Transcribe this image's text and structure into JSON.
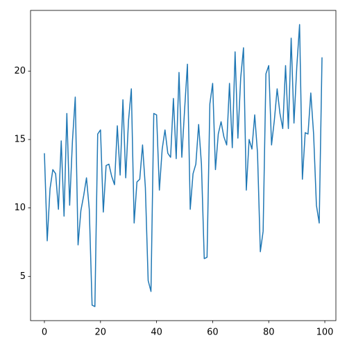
{
  "chart_data": {
    "type": "line",
    "x": [
      0,
      1,
      2,
      3,
      4,
      5,
      6,
      7,
      8,
      9,
      10,
      11,
      12,
      13,
      14,
      15,
      16,
      17,
      18,
      19,
      20,
      21,
      22,
      23,
      24,
      25,
      26,
      27,
      28,
      29,
      30,
      31,
      32,
      33,
      34,
      35,
      36,
      37,
      38,
      39,
      40,
      41,
      42,
      43,
      44,
      45,
      46,
      47,
      48,
      49,
      50,
      51,
      52,
      53,
      54,
      55,
      56,
      57,
      58,
      59,
      60,
      61,
      62,
      63,
      64,
      65,
      66,
      67,
      68,
      69,
      70,
      71,
      72,
      73,
      74,
      75,
      76,
      77,
      78,
      79,
      80,
      81,
      82,
      83,
      84,
      85,
      86,
      87,
      88,
      89,
      90,
      91,
      92,
      93,
      94,
      95,
      96,
      97,
      98,
      99
    ],
    "series": [
      {
        "color": "#1f77b4",
        "values": [
          14.0,
          7.6,
          11.4,
          12.8,
          12.5,
          9.9,
          14.9,
          9.4,
          16.9,
          10.2,
          14.9,
          18.1,
          7.3,
          9.8,
          10.9,
          12.2,
          9.9,
          2.9,
          2.8,
          15.4,
          15.7,
          9.7,
          13.1,
          13.2,
          12.3,
          11.7,
          16.0,
          12.4,
          17.9,
          12.2,
          16.4,
          18.7,
          8.9,
          11.9,
          12.1,
          14.6,
          11.5,
          4.7,
          3.9,
          16.9,
          16.8,
          11.3,
          14.3,
          15.7,
          14.0,
          13.7,
          18.0,
          13.6,
          19.9,
          13.7,
          17.2,
          20.5,
          9.9,
          12.5,
          13.2,
          16.1,
          13.2,
          6.3,
          6.4,
          17.6,
          19.1,
          12.8,
          15.4,
          16.3,
          15.2,
          14.6,
          19.1,
          14.4,
          21.4,
          15.1,
          19.5,
          21.7,
          11.3,
          15.0,
          14.3,
          16.8,
          14.0,
          6.8,
          8.3,
          19.8,
          20.4,
          14.6,
          16.4,
          18.7,
          16.9,
          15.8,
          20.4,
          15.8,
          22.4,
          16.2,
          20.3,
          23.4,
          12.1,
          15.5,
          15.4,
          18.4,
          15.4,
          10.2,
          8.9,
          21.0
        ]
      }
    ],
    "xlim": [
      -4.95,
      103.95
    ],
    "xticks": [
      0,
      20,
      40,
      60,
      80,
      100
    ],
    "ylim": [
      1.77,
      24.43
    ],
    "yticks": [
      5,
      10,
      15,
      20
    ]
  }
}
